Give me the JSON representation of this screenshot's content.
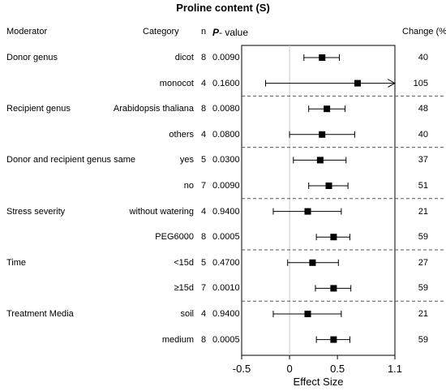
{
  "title": "Proline content (S)",
  "headers": {
    "moderator": "Moderator",
    "category": "Category",
    "n": "n",
    "p_prefix": "P",
    "p_suffix": "- value",
    "change": "Change (%)"
  },
  "rows": [
    {
      "moderator": "Donor genus",
      "category": "dicot",
      "n": "8",
      "p": "0.0090",
      "change": "40"
    },
    {
      "moderator": "",
      "category": "monocot",
      "n": "4",
      "p": "0.1600",
      "change": "105"
    },
    {
      "moderator": "Recipient genus",
      "category": "Arabidopsis thaliana",
      "n": "8",
      "p": "0.0080",
      "change": "48"
    },
    {
      "moderator": "",
      "category": "others",
      "n": "4",
      "p": "0.0800",
      "change": "40"
    },
    {
      "moderator": "Donor and recipient genus same",
      "category": "yes",
      "n": "5",
      "p": "0.0300",
      "change": "37"
    },
    {
      "moderator": "",
      "category": "no",
      "n": "7",
      "p": "0.0090",
      "change": "51"
    },
    {
      "moderator": "Stress severity",
      "category": "without watering",
      "n": "4",
      "p": "0.9400",
      "change": "21"
    },
    {
      "moderator": "",
      "category": "PEG6000",
      "n": "8",
      "p": "0.0005",
      "change": "59"
    },
    {
      "moderator": "Time",
      "category": "<15d",
      "n": "5",
      "p": "0.4700",
      "change": "27"
    },
    {
      "moderator": "",
      "category": "≥15d",
      "n": "7",
      "p": "0.0010",
      "change": "59"
    },
    {
      "moderator": "Treatment Media",
      "category": "soil",
      "n": "4",
      "p": "0.9400",
      "change": "21"
    },
    {
      "moderator": "",
      "category": "medium",
      "n": "8",
      "p": "0.0005",
      "change": "59"
    }
  ],
  "chart_data": {
    "type": "forest",
    "xlabel": "Effect Size",
    "xlim": [
      -0.5,
      1.1
    ],
    "xticks": [
      -0.5,
      0,
      0.5,
      1.1
    ],
    "xtick_labels": [
      "-0.5",
      "0",
      "0.5",
      "1.1"
    ],
    "reference_line": 0,
    "group_separators": "dashed lines between moderator groups",
    "points": [
      {
        "est": 0.34,
        "lo": 0.15,
        "hi": 0.52,
        "arrow": false
      },
      {
        "est": 0.71,
        "lo": -0.25,
        "hi": 1.1,
        "arrow": true
      },
      {
        "est": 0.39,
        "lo": 0.2,
        "hi": 0.58,
        "arrow": false
      },
      {
        "est": 0.34,
        "lo": 0.0,
        "hi": 0.68,
        "arrow": false
      },
      {
        "est": 0.32,
        "lo": 0.04,
        "hi": 0.59,
        "arrow": false
      },
      {
        "est": 0.41,
        "lo": 0.2,
        "hi": 0.61,
        "arrow": false
      },
      {
        "est": 0.19,
        "lo": -0.17,
        "hi": 0.54,
        "arrow": false
      },
      {
        "est": 0.46,
        "lo": 0.28,
        "hi": 0.63,
        "arrow": false
      },
      {
        "est": 0.24,
        "lo": -0.02,
        "hi": 0.51,
        "arrow": false
      },
      {
        "est": 0.46,
        "lo": 0.27,
        "hi": 0.64,
        "arrow": false
      },
      {
        "est": 0.19,
        "lo": -0.17,
        "hi": 0.54,
        "arrow": false
      },
      {
        "est": 0.46,
        "lo": 0.28,
        "hi": 0.63,
        "arrow": false
      }
    ]
  }
}
